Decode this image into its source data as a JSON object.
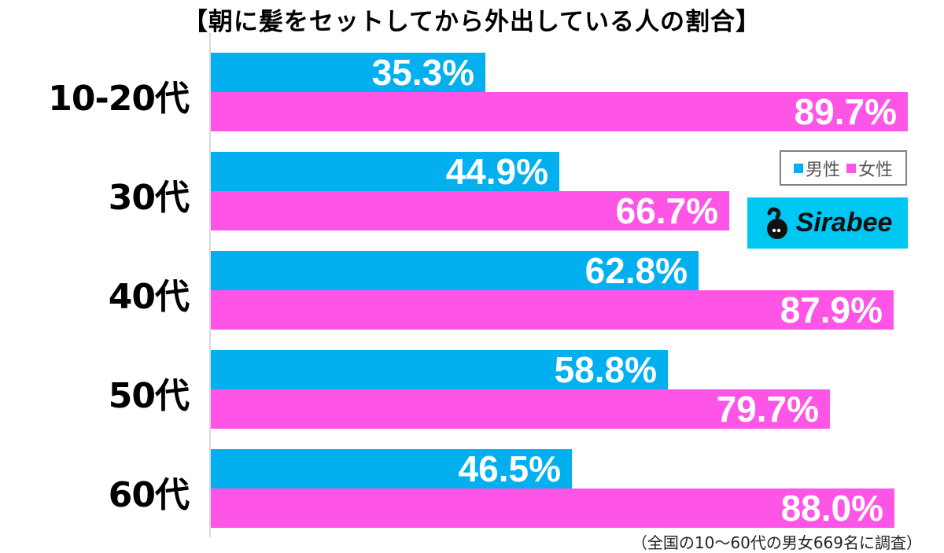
{
  "title": "【朝に髪をセットしてから外出している人の割合】",
  "legend": {
    "male_label": "男性",
    "female_label": "女性"
  },
  "logo": {
    "text": "Sirabee"
  },
  "footnote": "（全国の10〜60代の男女669名に調査）",
  "colors": {
    "male": "#02B0EF",
    "female": "#FF55E6",
    "logo_bg": "#00C7F2"
  },
  "groups": [
    {
      "label": "10-20代",
      "male": "35.3%",
      "female": "89.7%"
    },
    {
      "label": "30代",
      "male": "44.9%",
      "female": "66.7%"
    },
    {
      "label": "40代",
      "male": "62.8%",
      "female": "87.9%"
    },
    {
      "label": "50代",
      "male": "58.8%",
      "female": "79.7%"
    },
    {
      "label": "60代",
      "male": "46.5%",
      "female": "88.0%"
    }
  ],
  "chart_data": {
    "type": "bar",
    "orientation": "horizontal",
    "title": "【朝に髪をセットしてから外出している人の割合】",
    "categories": [
      "10-20代",
      "30代",
      "40代",
      "50代",
      "60代"
    ],
    "series": [
      {
        "name": "男性",
        "color": "#02B0EF",
        "values": [
          35.3,
          44.9,
          62.8,
          58.8,
          46.5
        ]
      },
      {
        "name": "女性",
        "color": "#FF55E6",
        "values": [
          89.7,
          66.7,
          87.9,
          79.7,
          88.0
        ]
      }
    ],
    "xlabel": "",
    "ylabel": "",
    "unit": "%",
    "grid": false,
    "legend_position": "right, inside plot",
    "annotation": "（全国の10〜60代の男女669名に調査）"
  }
}
